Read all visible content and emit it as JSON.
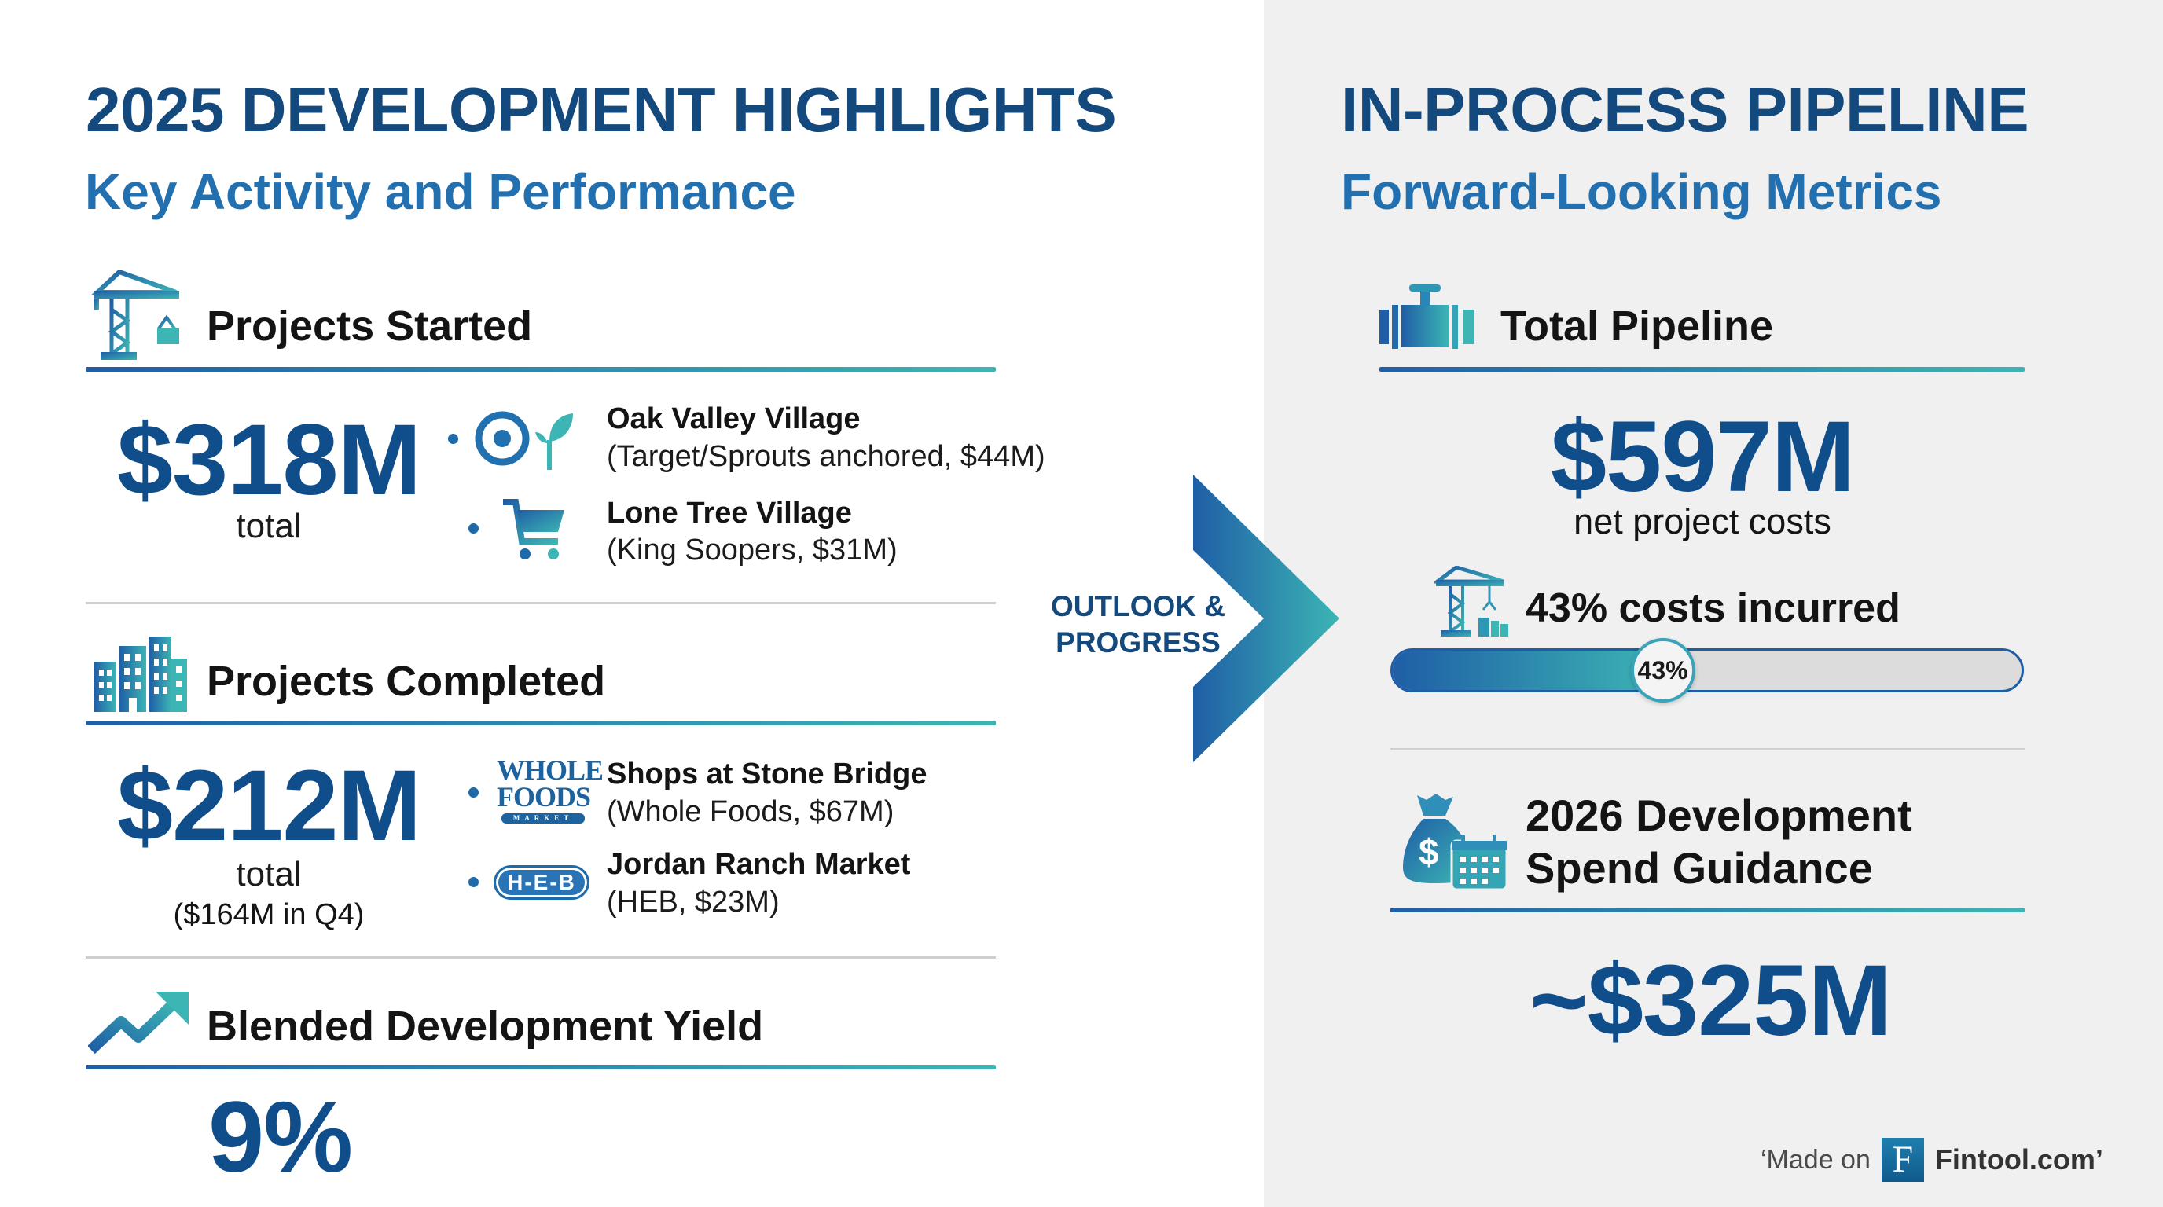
{
  "left": {
    "title": "2025 DEVELOPMENT HIGHLIGHTS",
    "subtitle": "Key Activity and Performance",
    "started": {
      "heading": "Projects Started",
      "icon": "crane-icon",
      "value": "$318M",
      "value_label": "total",
      "items": [
        {
          "name": "Oak Valley Village",
          "detail": "(Target/Sprouts anchored, $44M)",
          "icon": "target-sprouts-icon"
        },
        {
          "name": "Lone Tree Village",
          "detail": "(King Soopers, $31M)",
          "icon": "shopping-cart-icon"
        }
      ]
    },
    "completed": {
      "heading": "Projects Completed",
      "icon": "buildings-icon",
      "value": "$212M",
      "value_label": "total",
      "value_note": "($164M in Q4)",
      "items": [
        {
          "name": "Shops at Stone Bridge",
          "detail": "(Whole Foods, $67M)",
          "icon": "whole-foods-logo",
          "logo_text": [
            "WHOLE",
            "FOODS",
            "MARKET"
          ]
        },
        {
          "name": "Jordan Ranch Market",
          "detail": "(HEB, $23M)",
          "icon": "heb-logo",
          "logo_text": "H-E-B"
        }
      ]
    },
    "yield": {
      "heading": "Blended Development Yield",
      "icon": "trend-up-icon",
      "value": "9%"
    }
  },
  "middle": {
    "label_line1": "OUTLOOK &",
    "label_line2": "PROGRESS",
    "icon": "chevron-right-icon"
  },
  "right": {
    "title": "IN-PROCESS PIPELINE",
    "subtitle": "Forward-Looking Metrics",
    "pipeline": {
      "heading": "Total Pipeline",
      "icon": "pipe-valve-icon",
      "value": "$597M",
      "value_label": "net project costs",
      "progress_heading": "43% costs incurred",
      "progress_icon": "crane-icon",
      "progress_percent": 43,
      "progress_label": "43%"
    },
    "guidance": {
      "heading_line1": "2026 Development",
      "heading_line2": "Spend Guidance",
      "icon": "money-bag-calendar-icon",
      "value": "~$325M"
    }
  },
  "footer": {
    "prefix": "‘Made on",
    "logo_letter": "F",
    "brand": "Fintool.com’"
  },
  "colors": {
    "title": "#14497d",
    "subtitle": "#2370b0",
    "value": "#104e8b",
    "gradient_start": "#1f5ea6",
    "gradient_end": "#3cb5b4",
    "right_panel_bg": "#f0f0f0"
  }
}
